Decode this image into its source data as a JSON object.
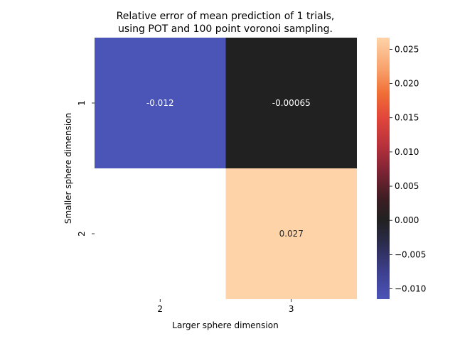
{
  "chart_data": {
    "type": "heatmap",
    "title": [
      "Relative error of mean prediction of 1 trials,",
      "using POT and 100 point voronoi sampling."
    ],
    "xlabel": "Larger sphere dimension",
    "ylabel": "Smaller sphere dimension",
    "x_categories": [
      "2",
      "3"
    ],
    "y_categories": [
      "1",
      "2"
    ],
    "cells": [
      {
        "row": 0,
        "col": 0,
        "value": -0.012,
        "label": "-0.012",
        "color": "#4b54b7",
        "label_color": "#ffffff"
      },
      {
        "row": 0,
        "col": 1,
        "value": -0.00065,
        "label": "-0.00065",
        "color": "#212121",
        "label_color": "#ffffff"
      },
      {
        "row": 1,
        "col": 1,
        "value": 0.027,
        "label": "0.027",
        "color": "#fed3a8",
        "label_color": "#262626"
      }
    ],
    "missing_cells": [
      {
        "row": 1,
        "col": 0
      }
    ],
    "colorbar": {
      "colormap": "icefire",
      "range": [
        -0.0115,
        0.0267
      ],
      "ticks": [
        -0.01,
        -0.005,
        0.0,
        0.005,
        0.01,
        0.015,
        0.02,
        0.025
      ],
      "tick_labels": [
        "−0.010",
        "−0.005",
        "0.000",
        "0.005",
        "0.010",
        "0.015",
        "0.020",
        "0.025"
      ],
      "stops": [
        {
          "value": -0.0115,
          "color": "#4b54b7"
        },
        {
          "value": -0.0075,
          "color": "#3d3f8e"
        },
        {
          "value": -0.003,
          "color": "#2a2a48"
        },
        {
          "value": 0.0,
          "color": "#212121"
        },
        {
          "value": 0.003,
          "color": "#3a1d22"
        },
        {
          "value": 0.007,
          "color": "#7b2333"
        },
        {
          "value": 0.011,
          "color": "#b8323c"
        },
        {
          "value": 0.015,
          "color": "#e1463a"
        },
        {
          "value": 0.0185,
          "color": "#f06e35"
        },
        {
          "value": 0.022,
          "color": "#f8a06a"
        },
        {
          "value": 0.0267,
          "color": "#fed3a8"
        }
      ]
    }
  }
}
